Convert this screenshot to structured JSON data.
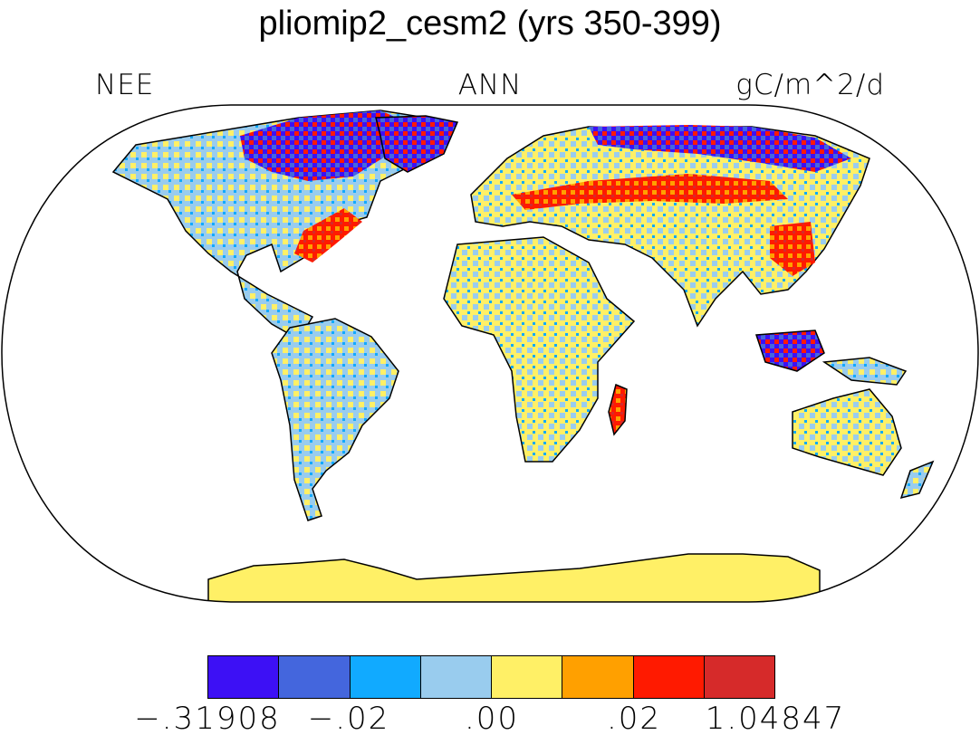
{
  "header": {
    "title": "pliomip2_cesm2 (yrs 350-399)",
    "left_label": "NEE",
    "center_label": "ANN",
    "right_label": "gC/m^2/d"
  },
  "colors": {
    "ocean": "#ffffff",
    "ice": "#ffffff",
    "coastline": "#000000"
  },
  "colorbar": {
    "swatches": [
      "#3d10f5",
      "#4466dd",
      "#11aaff",
      "#99ccee",
      "#fff066",
      "#ffa000",
      "#ff1a00",
      "#d62a2a"
    ],
    "labels": [
      "−.31908",
      "−.02",
      ".00",
      ".02",
      "1.04847"
    ]
  }
}
